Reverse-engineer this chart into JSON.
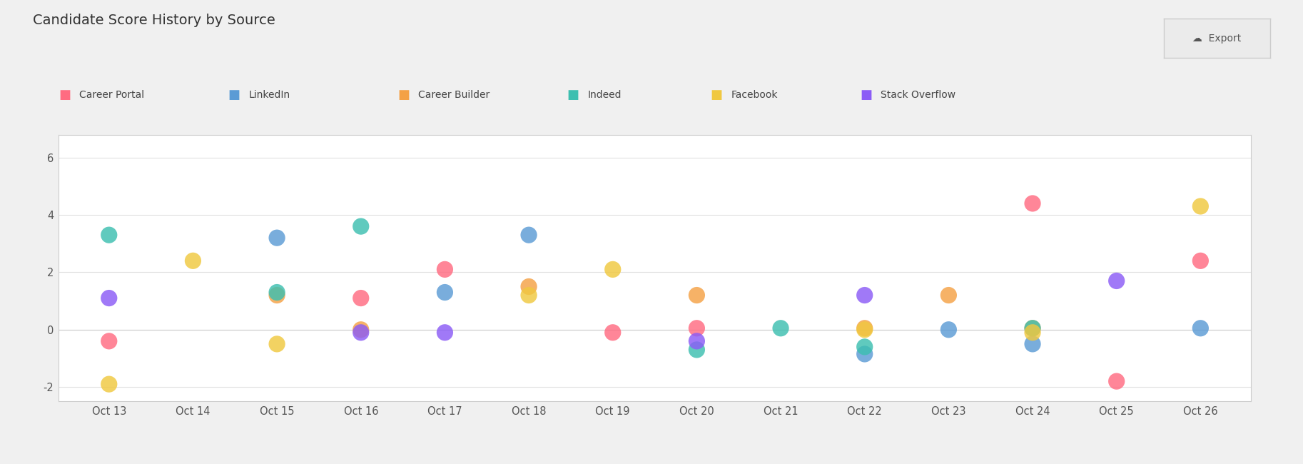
{
  "title": "Candidate Score History by Source",
  "background_color": "#f0f0f0",
  "chart_bg": "#ffffff",
  "sources": [
    "Career Portal",
    "LinkedIn",
    "Career Builder",
    "Indeed",
    "Facebook",
    "Stack Overflow"
  ],
  "colors": {
    "Career Portal": "#FF6B81",
    "LinkedIn": "#5B9BD5",
    "Career Builder": "#F4A145",
    "Indeed": "#3DBFB0",
    "Facebook": "#F0C840",
    "Stack Overflow": "#8B5CF6"
  },
  "data": {
    "Career Portal": [
      [
        "Oct 13",
        -0.4
      ],
      [
        "Oct 16",
        1.1
      ],
      [
        "Oct 17",
        2.1
      ],
      [
        "Oct 19",
        -0.1
      ],
      [
        "Oct 20",
        0.05
      ],
      [
        "Oct 24",
        4.4
      ],
      [
        "Oct 25",
        -1.8
      ],
      [
        "Oct 26",
        2.4
      ]
    ],
    "LinkedIn": [
      [
        "Oct 15",
        3.2
      ],
      [
        "Oct 17",
        1.3
      ],
      [
        "Oct 18",
        3.3
      ],
      [
        "Oct 22",
        -0.85
      ],
      [
        "Oct 23",
        0.0
      ],
      [
        "Oct 24",
        -0.5
      ],
      [
        "Oct 26",
        0.05
      ]
    ],
    "Career Builder": [
      [
        "Oct 15",
        1.2
      ],
      [
        "Oct 16",
        0.0
      ],
      [
        "Oct 18",
        1.5
      ],
      [
        "Oct 20",
        1.2
      ],
      [
        "Oct 22",
        0.05
      ],
      [
        "Oct 23",
        1.2
      ],
      [
        "Oct 24",
        0.05
      ]
    ],
    "Indeed": [
      [
        "Oct 13",
        3.3
      ],
      [
        "Oct 15",
        1.3
      ],
      [
        "Oct 16",
        3.6
      ],
      [
        "Oct 20",
        -0.7
      ],
      [
        "Oct 21",
        0.05
      ],
      [
        "Oct 22",
        -0.6
      ],
      [
        "Oct 24",
        0.05
      ]
    ],
    "Facebook": [
      [
        "Oct 13",
        -1.9
      ],
      [
        "Oct 14",
        2.4
      ],
      [
        "Oct 15",
        -0.5
      ],
      [
        "Oct 18",
        1.2
      ],
      [
        "Oct 19",
        2.1
      ],
      [
        "Oct 22",
        0.0
      ],
      [
        "Oct 24",
        -0.1
      ],
      [
        "Oct 26",
        4.3
      ]
    ],
    "Stack Overflow": [
      [
        "Oct 13",
        1.1
      ],
      [
        "Oct 16",
        -0.1
      ],
      [
        "Oct 17",
        -0.1
      ],
      [
        "Oct 20",
        -0.4
      ],
      [
        "Oct 22",
        1.2
      ],
      [
        "Oct 25",
        1.7
      ]
    ]
  },
  "x_labels": [
    "Oct 13",
    "Oct 14",
    "Oct 15",
    "Oct 16",
    "Oct 17",
    "Oct 18",
    "Oct 19",
    "Oct 20",
    "Oct 21",
    "Oct 22",
    "Oct 23",
    "Oct 24",
    "Oct 25",
    "Oct 26"
  ],
  "ylim": [
    -2.5,
    6.8
  ],
  "yticks": [
    -2,
    0,
    2,
    4,
    6
  ],
  "marker_size": 280,
  "export_text": "☁  Export"
}
